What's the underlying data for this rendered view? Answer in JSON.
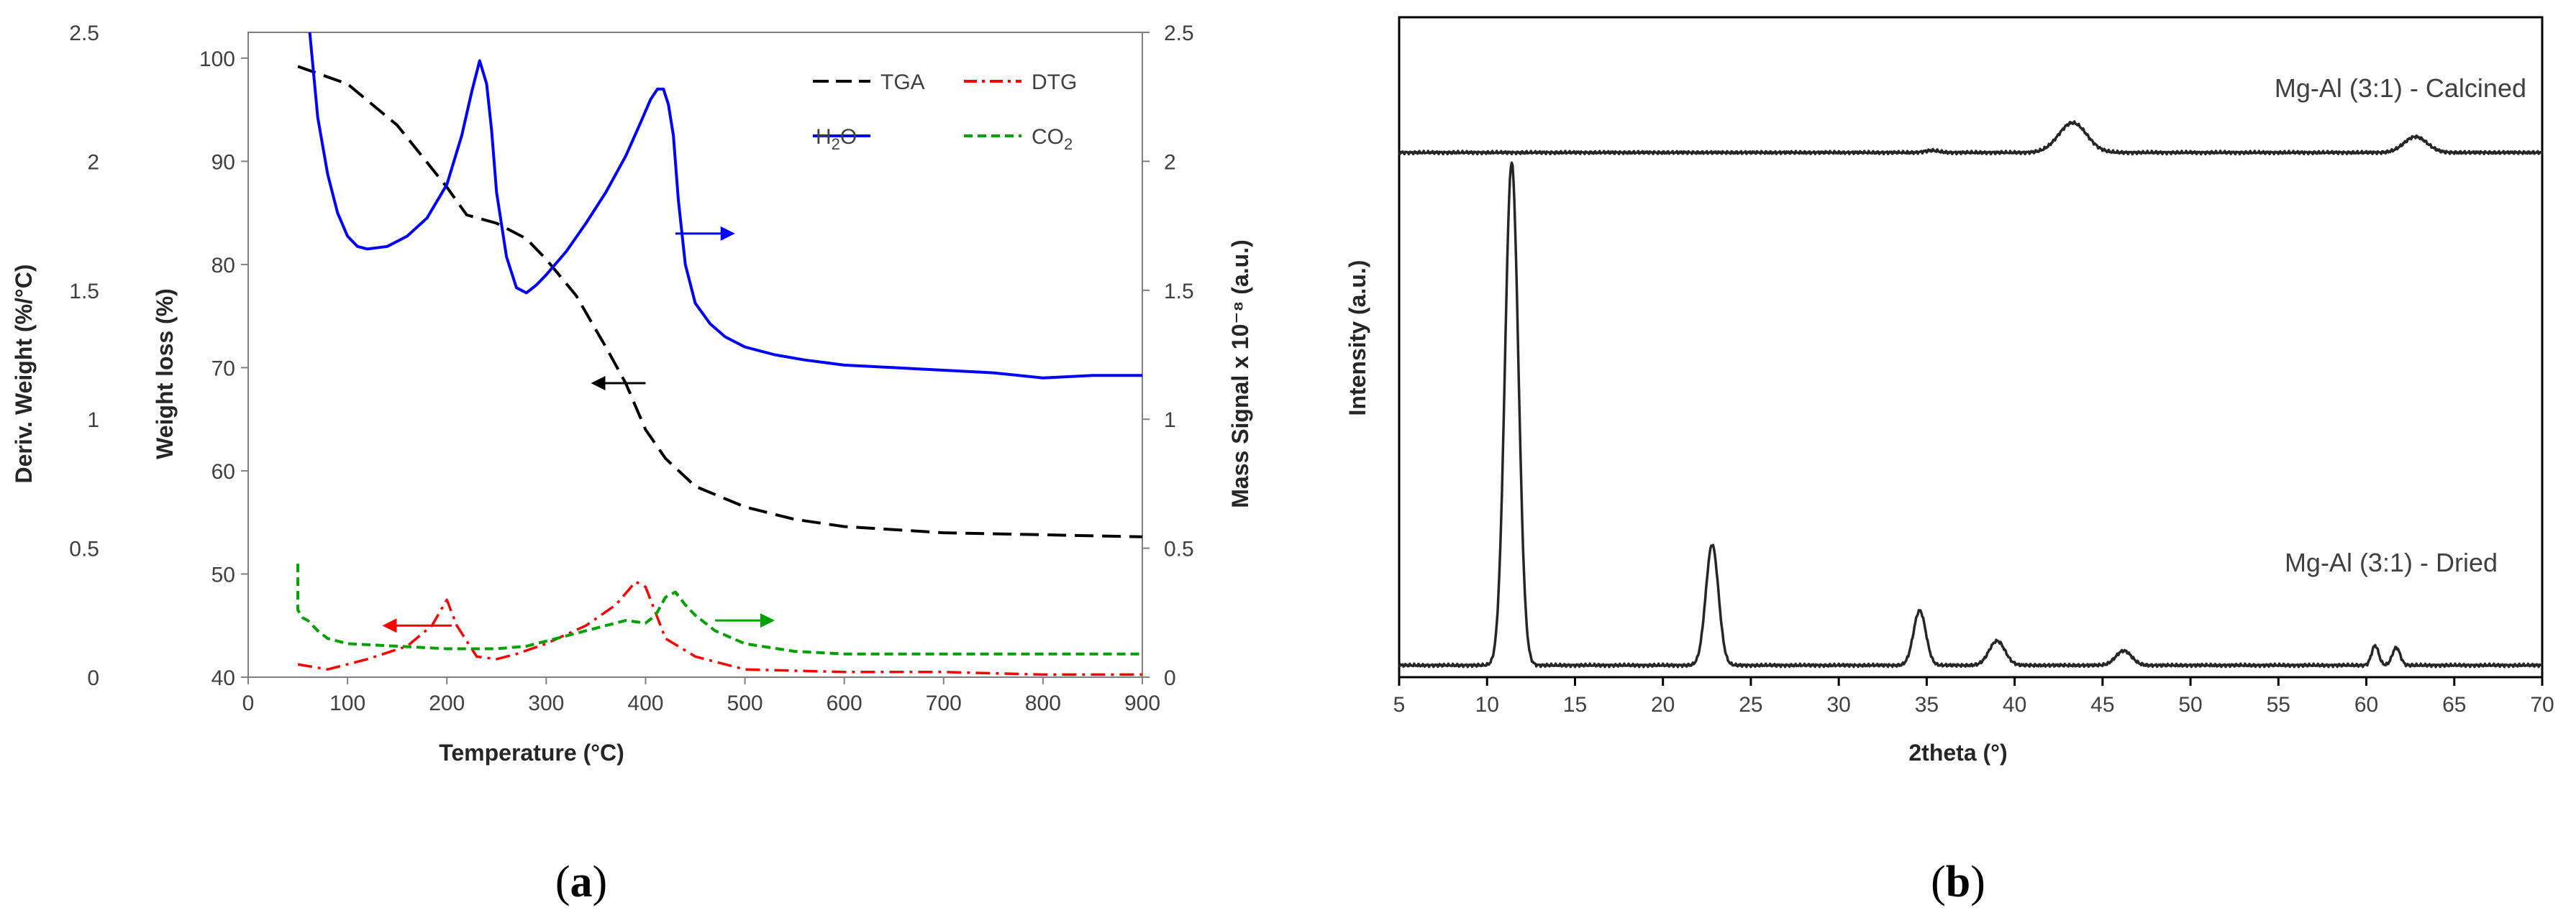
{
  "colors": {
    "tga": "#000000",
    "dtg": "#ff0000",
    "h2o": "#0000ff",
    "co2": "#00a000",
    "xrd": "#262626",
    "frame": "#808080"
  },
  "panel_labels": {
    "a": "a",
    "b": "b"
  },
  "chart_data": [
    {
      "id": "a",
      "type": "line",
      "title": "",
      "xlabel": "Temperature (°C)",
      "ylabel": "Weight loss (%)",
      "y2label_left": "Deriv. Weight (%/°C)",
      "y2label_right": "Mass Signal x 10⁻⁸ (a.u.)",
      "xlim": [
        0,
        900
      ],
      "ylim": [
        40,
        102.5
      ],
      "deriv_lim": [
        0,
        2.5
      ],
      "mass_lim": [
        0,
        2.5
      ],
      "xticks": [
        0,
        100,
        200,
        300,
        400,
        500,
        600,
        700,
        800,
        900
      ],
      "yticks": [
        40,
        50,
        60,
        70,
        80,
        90,
        100
      ],
      "deriv_ticks": [
        "0",
        "0.5",
        "1",
        "1.5",
        "2",
        "2.5"
      ],
      "deriv_tick_vals": [
        0,
        0.5,
        1,
        1.5,
        2,
        2.5
      ],
      "mass_ticks": [
        "0",
        "0.5",
        "1",
        "1.5",
        "2",
        "2.5"
      ],
      "mass_tick_vals": [
        0,
        0.5,
        1,
        1.5,
        2,
        2.5
      ],
      "legend": {
        "placement": "top-right",
        "tga": "TGA",
        "dtg": "DTG",
        "h2o_base": "H",
        "h2o_sub": "2",
        "h2o_end": "O",
        "co2_base": "CO",
        "co2_sub": "2"
      },
      "series": [
        {
          "name": "TGA",
          "axis": "weight",
          "style": "dash",
          "x": [
            50,
            100,
            150,
            200,
            220,
            250,
            280,
            300,
            330,
            360,
            380,
            400,
            420,
            450,
            500,
            550,
            600,
            700,
            800,
            900
          ],
          "y": [
            99.2,
            97.5,
            93.5,
            87.5,
            84.8,
            84,
            82.5,
            80.5,
            77,
            72,
            68.5,
            64,
            61.2,
            58.5,
            56.5,
            55.3,
            54.6,
            54,
            53.8,
            53.6
          ]
        },
        {
          "name": "DTG",
          "axis": "deriv",
          "style": "dashdot",
          "x": [
            50,
            80,
            120,
            160,
            185,
            200,
            210,
            230,
            250,
            270,
            300,
            340,
            370,
            390,
            400,
            410,
            420,
            450,
            500,
            600,
            700,
            800,
            900
          ],
          "y": [
            0.05,
            0.03,
            0.07,
            0.12,
            0.2,
            0.3,
            0.2,
            0.08,
            0.07,
            0.09,
            0.13,
            0.2,
            0.28,
            0.37,
            0.35,
            0.25,
            0.15,
            0.08,
            0.03,
            0.02,
            0.02,
            0.01,
            0.01
          ]
        },
        {
          "name": "H2O",
          "axis": "mass",
          "style": "solid",
          "x": [
            62,
            70,
            80,
            90,
            100,
            110,
            120,
            140,
            160,
            180,
            200,
            215,
            225,
            233,
            240,
            245,
            250,
            260,
            270,
            280,
            290,
            300,
            320,
            340,
            360,
            380,
            395,
            405,
            412,
            418,
            423,
            428,
            433,
            440,
            450,
            465,
            480,
            500,
            530,
            560,
            600,
            650,
            700,
            750,
            800,
            850,
            900
          ],
          "y": [
            2.58,
            2.17,
            1.95,
            1.8,
            1.71,
            1.67,
            1.66,
            1.67,
            1.71,
            1.78,
            1.91,
            2.1,
            2.27,
            2.39,
            2.3,
            2.12,
            1.88,
            1.63,
            1.51,
            1.49,
            1.52,
            1.56,
            1.65,
            1.76,
            1.88,
            2.02,
            2.15,
            2.24,
            2.28,
            2.28,
            2.22,
            2.1,
            1.85,
            1.6,
            1.45,
            1.37,
            1.32,
            1.28,
            1.25,
            1.23,
            1.21,
            1.2,
            1.19,
            1.18,
            1.16,
            1.17,
            1.17
          ]
        },
        {
          "name": "CO2",
          "axis": "mass",
          "style": "shortdash",
          "x": [
            50,
            50,
            55,
            60,
            70,
            80,
            100,
            150,
            200,
            250,
            280,
            300,
            330,
            360,
            380,
            400,
            410,
            420,
            430,
            440,
            450,
            470,
            500,
            550,
            600,
            700,
            800,
            900
          ],
          "y": [
            0.44,
            0.26,
            0.23,
            0.22,
            0.18,
            0.15,
            0.13,
            0.12,
            0.11,
            0.11,
            0.12,
            0.14,
            0.17,
            0.2,
            0.22,
            0.21,
            0.24,
            0.31,
            0.33,
            0.28,
            0.24,
            0.18,
            0.13,
            0.1,
            0.09,
            0.09,
            0.09,
            0.09
          ]
        }
      ],
      "arrows": [
        {
          "series": "H2O",
          "x_from": 430,
          "x_to": 490,
          "y_mass": 1.72,
          "dir": "right"
        },
        {
          "series": "TGA",
          "x_from": 400,
          "x_to": 345,
          "y_weight": 68.5,
          "dir": "left"
        },
        {
          "series": "DTG",
          "x_from": 205,
          "x_to": 135,
          "y_deriv": 0.2,
          "dir": "left"
        },
        {
          "series": "CO2",
          "x_from": 470,
          "x_to": 530,
          "y_mass": 0.22,
          "dir": "right"
        }
      ]
    },
    {
      "id": "b",
      "type": "line",
      "title": "",
      "xlabel": "2theta (°)",
      "ylabel": "Intensity (a.u.)",
      "xlim": [
        5,
        70
      ],
      "ylim": [
        0,
        100
      ],
      "xticks": [
        5,
        10,
        15,
        20,
        25,
        30,
        35,
        40,
        45,
        50,
        55,
        60,
        65,
        70
      ],
      "series": [
        {
          "name": "Mg-Al (3:1) - Calcined",
          "baseline": 79.5,
          "peaks": [
            {
              "x": 35.3,
              "h": 0.3,
              "w": 0.4
            },
            {
              "x": 43.3,
              "h": 4.5,
              "w": 0.8
            },
            {
              "x": 62.8,
              "h": 2.4,
              "w": 0.65
            }
          ]
        },
        {
          "name": "Mg-Al (3:1) - Dried",
          "baseline": 1.8,
          "peaks": [
            {
              "x": 11.4,
              "h": 76.2,
              "w": 0.38
            },
            {
              "x": 22.8,
              "h": 18.3,
              "w": 0.36
            },
            {
              "x": 34.6,
              "h": 8.3,
              "w": 0.35
            },
            {
              "x": 39.0,
              "h": 3.7,
              "w": 0.45
            },
            {
              "x": 46.2,
              "h": 2.2,
              "w": 0.45
            },
            {
              "x": 60.5,
              "h": 3.0,
              "w": 0.2
            },
            {
              "x": 61.7,
              "h": 2.7,
              "w": 0.22
            }
          ]
        }
      ]
    }
  ]
}
